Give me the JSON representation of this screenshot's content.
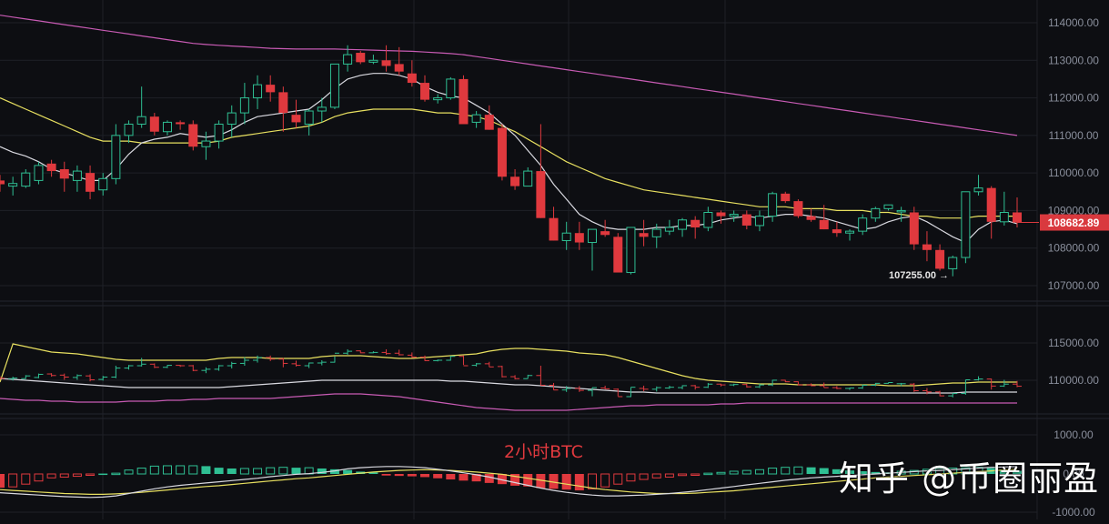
{
  "chart_title_label": "2小时BTC",
  "watermark": "知乎 @币圈丽盈",
  "colors": {
    "background": "#0d0e12",
    "grid": "#1e2027",
    "axis_text": "#8a8f9c",
    "up": "#2fbf93",
    "down": "#e0393e",
    "ma_white": "#d9d9e0",
    "ma_yellow": "#e8e060",
    "ma_magenta": "#c85bb4",
    "price_tag_bg": "#d9393e"
  },
  "main_panel": {
    "y_ticks": [
      "114000.00",
      "113000.00",
      "112000.00",
      "111000.00",
      "110000.00",
      "109000.00",
      "108000.00",
      "107000.00"
    ],
    "current_price": "108682.89",
    "low_marker": "107255.00 →"
  },
  "boll_panel": {
    "y_ticks": [
      "115000.00",
      "110000.00"
    ]
  },
  "macd_panel": {
    "y_ticks": [
      "1000.00",
      "0.00",
      "-1000.00"
    ]
  },
  "chart_data": {
    "type": "candlestick",
    "title": "2小时BTC",
    "timeframe": "2h",
    "symbol": "BTC",
    "ylim": [
      106800,
      114300
    ],
    "current_price": 108682.89,
    "annotated_low": 107255.0,
    "legend": [],
    "candles_ohlc_approx": [
      [
        109800,
        109950,
        109500,
        109700
      ],
      [
        109650,
        109900,
        109400,
        109720
      ],
      [
        109650,
        110100,
        109600,
        110000
      ],
      [
        109800,
        110300,
        109700,
        110200
      ],
      [
        110250,
        110350,
        109900,
        110050
      ],
      [
        110100,
        110300,
        109500,
        109850
      ],
      [
        109800,
        110200,
        109500,
        110050
      ],
      [
        110000,
        110200,
        109300,
        109500
      ],
      [
        109550,
        110000,
        109400,
        109850
      ],
      [
        109850,
        111300,
        109700,
        111000
      ],
      [
        111000,
        111400,
        110800,
        111300
      ],
      [
        111300,
        112300,
        111200,
        111500
      ],
      [
        111500,
        111600,
        111000,
        111100
      ],
      [
        111100,
        111400,
        111000,
        111350
      ],
      [
        111350,
        111400,
        111150,
        111300
      ],
      [
        111300,
        111400,
        110600,
        110700
      ],
      [
        110700,
        111100,
        110350,
        110850
      ],
      [
        110850,
        111400,
        110650,
        111300
      ],
      [
        111300,
        111800,
        110950,
        111600
      ],
      [
        111600,
        112400,
        111300,
        112000
      ],
      [
        112000,
        112600,
        111700,
        112350
      ],
      [
        112350,
        112600,
        111900,
        112150
      ],
      [
        112150,
        112300,
        111100,
        111600
      ],
      [
        111550,
        111950,
        111200,
        111350
      ],
      [
        111300,
        111700,
        111000,
        111650
      ],
      [
        111650,
        112000,
        111350,
        111750
      ],
      [
        111750,
        112500,
        111700,
        112900
      ],
      [
        112900,
        113400,
        112700,
        113150
      ],
      [
        113200,
        113250,
        112900,
        112950
      ],
      [
        112950,
        113150,
        112900,
        113000
      ],
      [
        113000,
        113400,
        112700,
        112850
      ],
      [
        112900,
        113350,
        112600,
        112700
      ],
      [
        112650,
        113000,
        112300,
        112400
      ],
      [
        112400,
        112600,
        111900,
        111950
      ],
      [
        111950,
        112100,
        111850,
        112000
      ],
      [
        112000,
        112550,
        111950,
        112500
      ],
      [
        112500,
        112600,
        111400,
        111300
      ],
      [
        111350,
        111650,
        111200,
        111550
      ],
      [
        111550,
        111800,
        111150,
        111150
      ],
      [
        111200,
        111300,
        109800,
        109900
      ],
      [
        109900,
        110100,
        109550,
        109650
      ],
      [
        109650,
        110150,
        109650,
        110050
      ],
      [
        110050,
        111300,
        108800,
        108800
      ],
      [
        108800,
        109100,
        108200,
        108200
      ],
      [
        108200,
        108700,
        107950,
        108400
      ],
      [
        108400,
        108700,
        107950,
        108150
      ],
      [
        108150,
        108500,
        107400,
        108500
      ],
      [
        108450,
        108750,
        108300,
        108350
      ],
      [
        108300,
        108400,
        107400,
        107350
      ],
      [
        107350,
        108550,
        107300,
        108550
      ],
      [
        108400,
        108750,
        108050,
        108300
      ],
      [
        108300,
        108650,
        108000,
        108500
      ],
      [
        108450,
        108750,
        108350,
        108550
      ],
      [
        108500,
        108800,
        108300,
        108750
      ],
      [
        108750,
        108850,
        108250,
        108550
      ],
      [
        108550,
        109100,
        108450,
        108950
      ],
      [
        108950,
        109000,
        108650,
        108850
      ],
      [
        108850,
        109000,
        108700,
        108900
      ],
      [
        108900,
        109000,
        108500,
        108600
      ],
      [
        108600,
        109000,
        108450,
        108850
      ],
      [
        108850,
        109500,
        108700,
        109450
      ],
      [
        109450,
        109500,
        109200,
        109250
      ],
      [
        109250,
        109300,
        108800,
        108850
      ],
      [
        108850,
        109050,
        108700,
        108750
      ],
      [
        108750,
        109150,
        108500,
        108500
      ],
      [
        108500,
        108700,
        108300,
        108400
      ],
      [
        108400,
        108500,
        108200,
        108450
      ],
      [
        108450,
        108900,
        108350,
        108800
      ],
      [
        108800,
        109100,
        108700,
        109050
      ],
      [
        109050,
        109150,
        109000,
        109150
      ],
      [
        109000,
        109100,
        108700,
        109000
      ],
      [
        108950,
        109100,
        107950,
        108100
      ],
      [
        108100,
        108450,
        107650,
        107950
      ],
      [
        107950,
        108100,
        107400,
        107450
      ],
      [
        107450,
        107800,
        107250,
        107750
      ],
      [
        107750,
        109500,
        107600,
        109500
      ],
      [
        109500,
        109950,
        109400,
        109600
      ],
      [
        109600,
        109650,
        108250,
        108700
      ],
      [
        108700,
        109500,
        108600,
        108950
      ],
      [
        108950,
        109350,
        108550,
        108680
      ]
    ],
    "ma_white": [
      110700,
      110550,
      110450,
      110300,
      110100,
      110000,
      109900,
      109800,
      109800,
      110100,
      110500,
      110800,
      110900,
      110950,
      111050,
      111000,
      110950,
      111000,
      111150,
      111350,
      111500,
      111550,
      111600,
      111650,
      111700,
      111950,
      112250,
      112500,
      112600,
      112650,
      112650,
      112600,
      112500,
      112300,
      112150,
      112050,
      112000,
      111800,
      111600,
      111300,
      111000,
      110600,
      110200,
      109700,
      109300,
      108900,
      108700,
      108550,
      108500,
      108500,
      108500,
      108550,
      108550,
      108600,
      108600,
      108650,
      108750,
      108800,
      108850,
      108800,
      108850,
      108900,
      108900,
      108850,
      108800,
      108700,
      108600,
      108500,
      108550,
      108700,
      108800,
      108850,
      108700,
      108500,
      108300,
      108150,
      108500,
      108700,
      108750,
      108650
    ],
    "ma_yellow": [
      112000,
      111850,
      111700,
      111550,
      111400,
      111250,
      111100,
      110950,
      110850,
      110850,
      110850,
      110800,
      110800,
      110800,
      110800,
      110800,
      110800,
      110850,
      110950,
      111000,
      111050,
      111100,
      111150,
      111200,
      111250,
      111350,
      111500,
      111600,
      111650,
      111700,
      111700,
      111700,
      111700,
      111650,
      111600,
      111600,
      111550,
      111500,
      111400,
      111250,
      111100,
      110900,
      110700,
      110500,
      110300,
      110150,
      110000,
      109850,
      109750,
      109650,
      109550,
      109500,
      109450,
      109400,
      109350,
      109300,
      109250,
      109200,
      109150,
      109100,
      109100,
      109100,
      109050,
      109050,
      109050,
      109000,
      109000,
      109000,
      108950,
      108950,
      108900,
      108850,
      108850,
      108800,
      108800,
      108800,
      108850,
      108850,
      108850,
      108850
    ],
    "ma_magenta": [
      114200,
      114150,
      114100,
      114050,
      114000,
      113950,
      113900,
      113850,
      113800,
      113750,
      113700,
      113650,
      113600,
      113550,
      113500,
      113450,
      113420,
      113400,
      113380,
      113360,
      113340,
      113320,
      113310,
      113300,
      113300,
      113300,
      113300,
      113290,
      113280,
      113270,
      113260,
      113250,
      113240,
      113220,
      113200,
      113180,
      113150,
      113100,
      113050,
      113000,
      112950,
      112900,
      112850,
      112800,
      112750,
      112700,
      112650,
      112600,
      112550,
      112500,
      112450,
      112400,
      112350,
      112300,
      112250,
      112200,
      112150,
      112100,
      112050,
      112000,
      111950,
      111900,
      111850,
      111800,
      111750,
      111700,
      111650,
      111600,
      111550,
      111500,
      111450,
      111400,
      111350,
      111300,
      111250,
      111200,
      111150,
      111100,
      111050,
      111000
    ],
    "macd_hist": [
      -350,
      -330,
      -260,
      -180,
      -100,
      -80,
      -60,
      -30,
      10,
      20,
      100,
      150,
      200,
      210,
      210,
      210,
      200,
      160,
      140,
      140,
      140,
      160,
      170,
      160,
      160,
      140,
      120,
      100,
      60,
      40,
      -40,
      -50,
      -60,
      -80,
      -110,
      -140,
      -170,
      -190,
      -230,
      -260,
      -300,
      -320,
      -360,
      -380,
      -400,
      -420,
      -380,
      -330,
      -260,
      -180,
      -140,
      -100,
      -80,
      -40,
      -10,
      20,
      40,
      70,
      90,
      110,
      150,
      170,
      180,
      170,
      150,
      120,
      90,
      70,
      50,
      40,
      70,
      90,
      120,
      140,
      150,
      160,
      170,
      150,
      110,
      80
    ],
    "macd_dif": [
      -480,
      -500,
      -520,
      -540,
      -560,
      -580,
      -590,
      -600,
      -590,
      -560,
      -500,
      -440,
      -380,
      -330,
      -290,
      -260,
      -230,
      -200,
      -170,
      -140,
      -110,
      -70,
      -40,
      -10,
      10,
      40,
      80,
      130,
      160,
      180,
      190,
      190,
      180,
      160,
      120,
      80,
      30,
      -20,
      -80,
      -150,
      -220,
      -290,
      -360,
      -420,
      -470,
      -510,
      -540,
      -560,
      -560,
      -550,
      -540,
      -520,
      -500,
      -470,
      -440,
      -400,
      -360,
      -320,
      -280,
      -240,
      -200,
      -160,
      -130,
      -100,
      -80,
      -60,
      -40,
      -20,
      0,
      20,
      40,
      60,
      80,
      90,
      110,
      130,
      150,
      170,
      180,
      190
    ],
    "macd_dea": [
      -400,
      -420,
      -440,
      -460,
      -480,
      -500,
      -510,
      -520,
      -520,
      -510,
      -490,
      -470,
      -440,
      -410,
      -380,
      -350,
      -320,
      -300,
      -270,
      -240,
      -210,
      -180,
      -150,
      -120,
      -100,
      -70,
      -40,
      -10,
      20,
      50,
      70,
      90,
      100,
      110,
      100,
      90,
      70,
      50,
      20,
      -10,
      -60,
      -110,
      -160,
      -210,
      -260,
      -310,
      -360,
      -400,
      -430,
      -460,
      -480,
      -500,
      -500,
      -500,
      -490,
      -470,
      -450,
      -430,
      -400,
      -370,
      -340,
      -310,
      -280,
      -250,
      -220,
      -190,
      -160,
      -130,
      -100,
      -80,
      -60,
      -40,
      -20,
      0,
      20,
      40,
      60,
      80,
      100,
      120
    ]
  }
}
